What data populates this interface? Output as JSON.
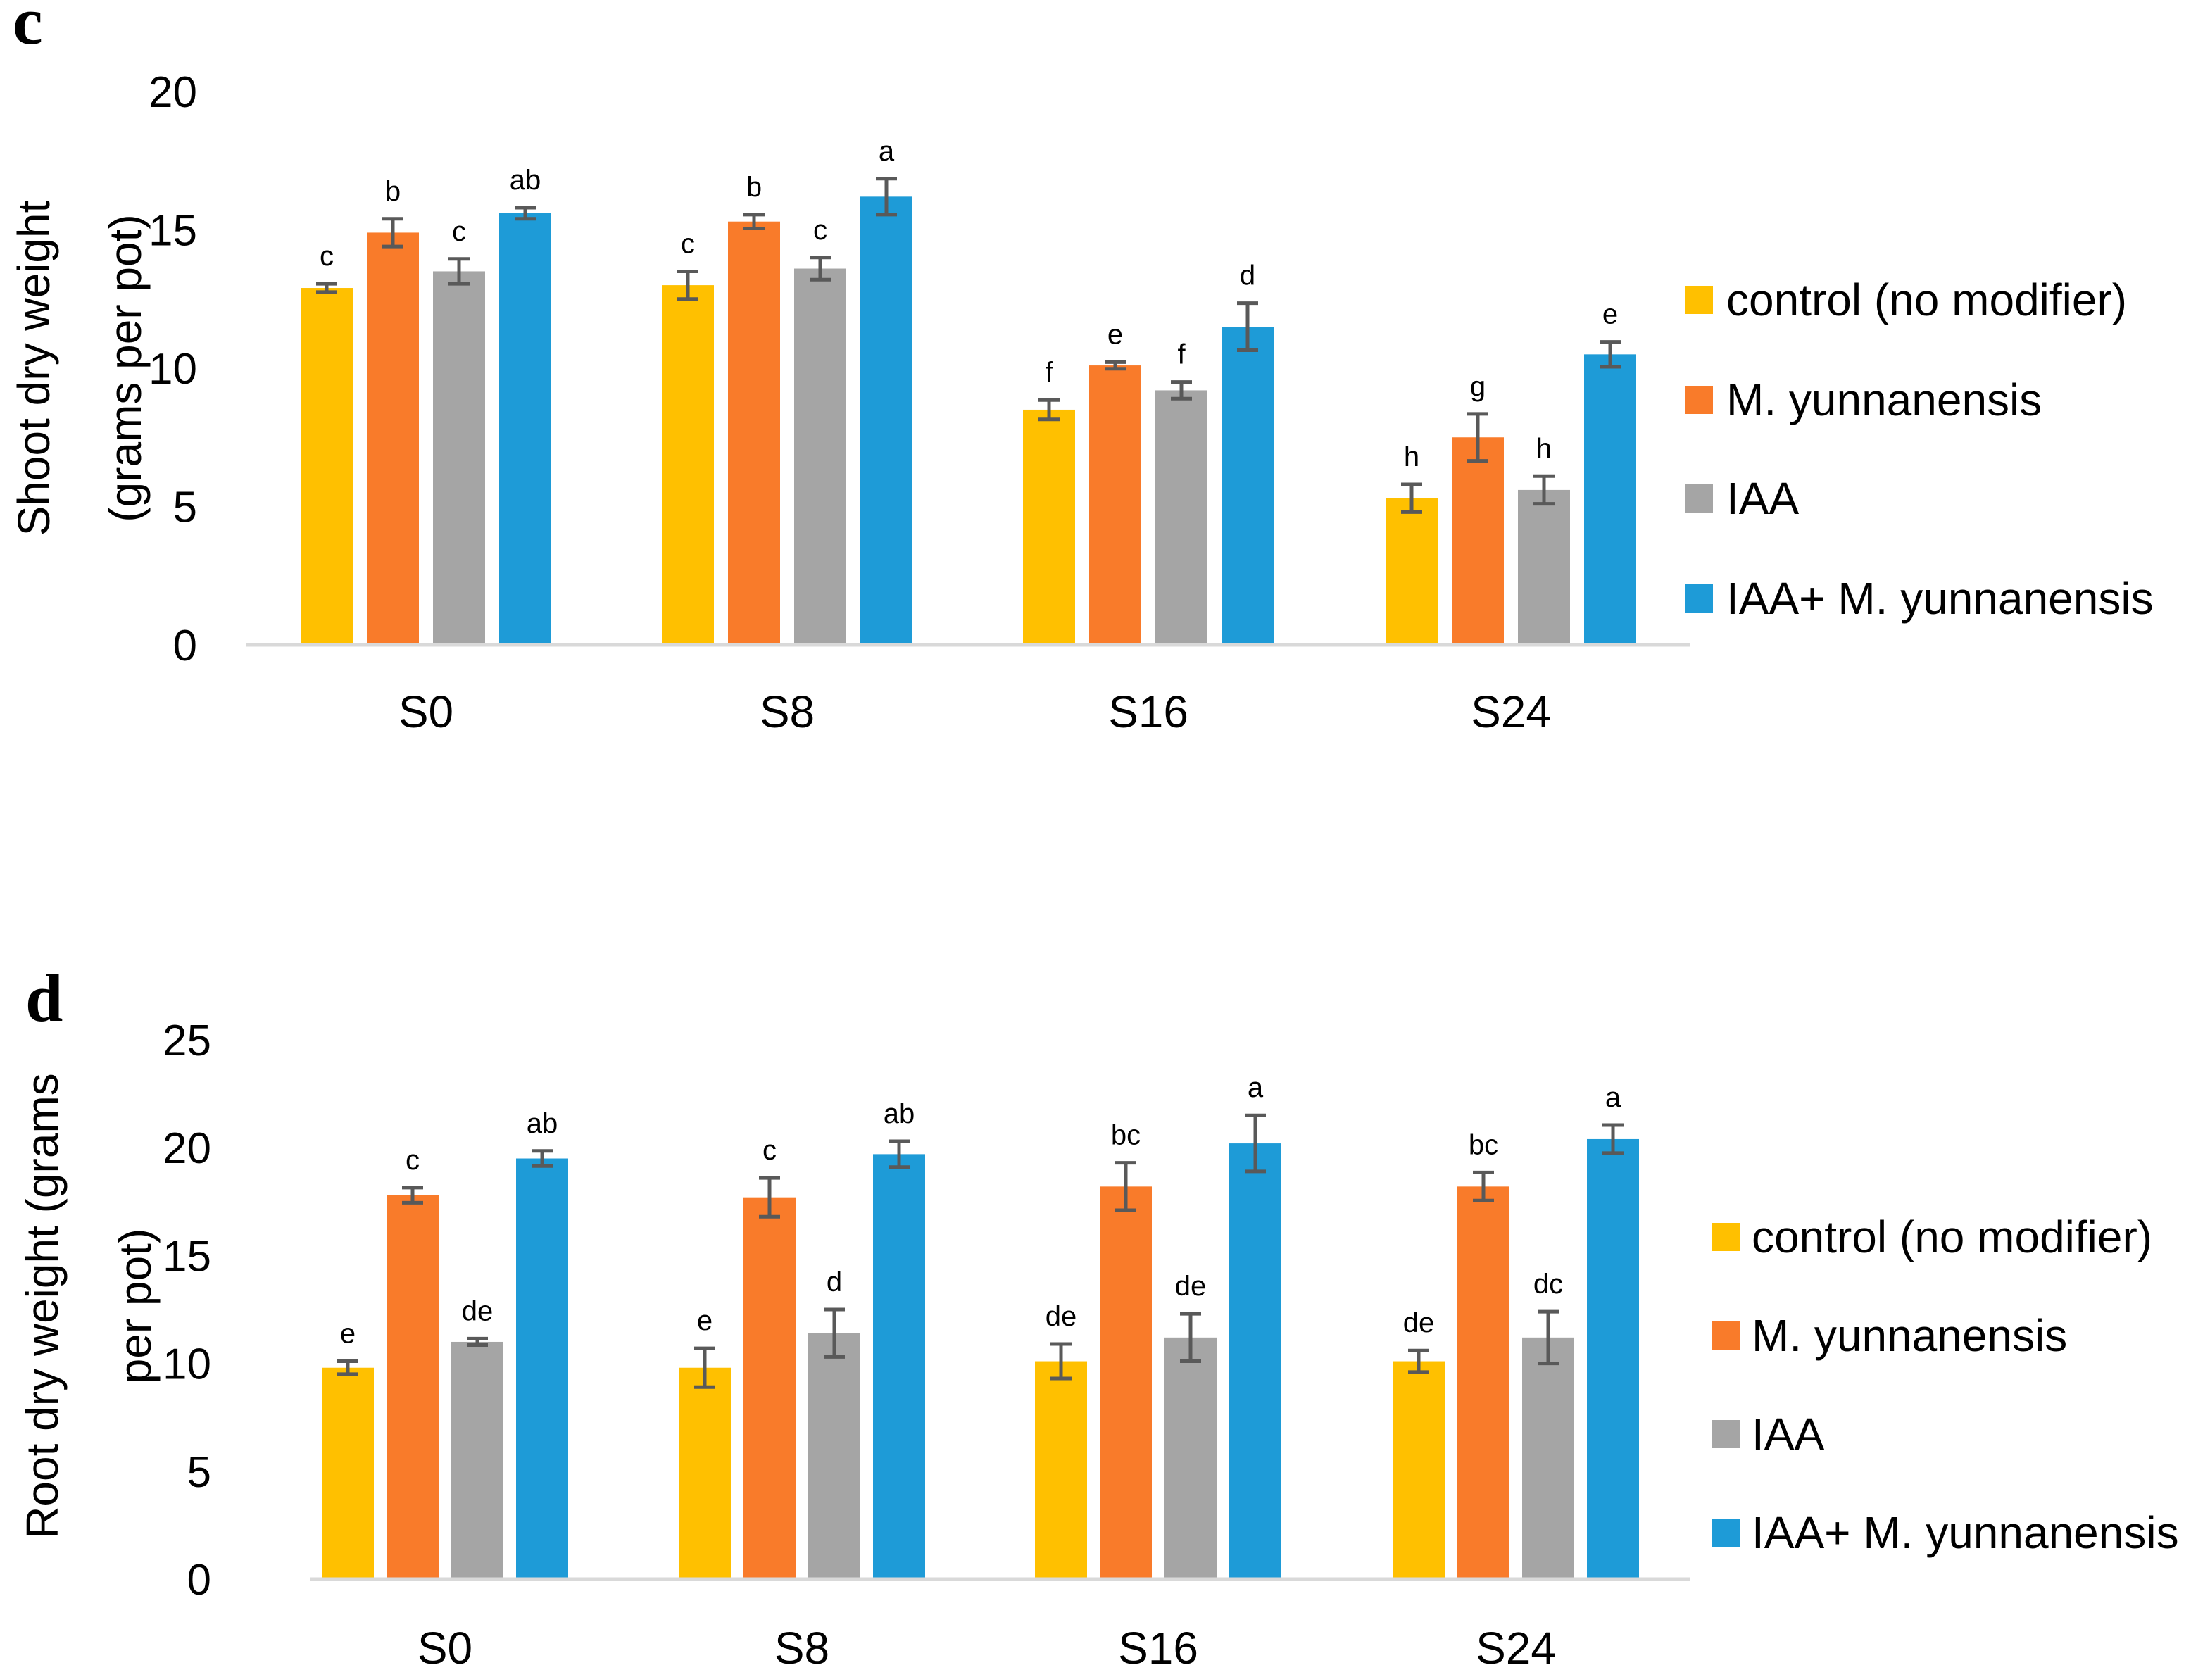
{
  "chart_data": [
    {
      "panel": "c",
      "type": "bar",
      "ylabel": [
        "Shoot dry weight",
        "(grams per pot)"
      ],
      "ylim": [
        0,
        20
      ],
      "yticks": [
        0,
        5,
        10,
        15,
        20
      ],
      "categories": [
        "S0",
        "S8",
        "S16",
        "S24"
      ],
      "series": [
        {
          "name": "control (no modifier)",
          "color": "#FFC000",
          "values": [
            12.9,
            13.0,
            8.5,
            5.3
          ],
          "errors": [
            0.15,
            0.5,
            0.35,
            0.5
          ],
          "letters": [
            "c",
            "c",
            "f",
            "h"
          ]
        },
        {
          "name": "M. yunnanensis",
          "color": "#F97B2A",
          "values": [
            14.9,
            15.3,
            10.1,
            7.5
          ],
          "errors": [
            0.5,
            0.25,
            0.12,
            0.85
          ],
          "letters": [
            "b",
            "b",
            "e",
            "g"
          ]
        },
        {
          "name": "IAA",
          "color": "#A5A5A5",
          "values": [
            13.5,
            13.6,
            9.2,
            5.6
          ],
          "errors": [
            0.45,
            0.4,
            0.3,
            0.5
          ],
          "letters": [
            "c",
            "c",
            "f",
            "h"
          ]
        },
        {
          "name": "IAA+ M. yunnanensis",
          "color": "#1E9BD7",
          "values": [
            15.6,
            16.2,
            11.5,
            10.5
          ],
          "errors": [
            0.2,
            0.65,
            0.85,
            0.45
          ],
          "letters": [
            "ab",
            "a",
            "d",
            "e"
          ]
        }
      ],
      "legend_position": "right"
    },
    {
      "panel": "d",
      "type": "bar",
      "ylabel": [
        "Root dry weight (grams",
        "per pot)"
      ],
      "ylim": [
        0,
        25
      ],
      "yticks": [
        0,
        5,
        10,
        15,
        20,
        25
      ],
      "categories": [
        "S0",
        "S8",
        "S16",
        "S24"
      ],
      "series": [
        {
          "name": "control (no modifier)",
          "color": "#FFC000",
          "values": [
            9.8,
            9.8,
            10.1,
            10.1
          ],
          "errors": [
            0.3,
            0.9,
            0.8,
            0.5
          ],
          "letters": [
            "e",
            "e",
            "de",
            "de"
          ]
        },
        {
          "name": "M. yunnanensis",
          "color": "#F97B2A",
          "values": [
            17.8,
            17.7,
            18.2,
            18.2
          ],
          "errors": [
            0.35,
            0.9,
            1.1,
            0.65
          ],
          "letters": [
            "c",
            "c",
            "bc",
            "bc"
          ]
        },
        {
          "name": "IAA",
          "color": "#A5A5A5",
          "values": [
            11.0,
            11.4,
            11.2,
            11.2
          ],
          "errors": [
            0.15,
            1.1,
            1.1,
            1.2
          ],
          "letters": [
            "de",
            "d",
            "de",
            "dc"
          ]
        },
        {
          "name": "IAA+ M. yunnanensis",
          "color": "#1E9BD7",
          "values": [
            19.5,
            19.7,
            20.2,
            20.4
          ],
          "errors": [
            0.35,
            0.6,
            1.3,
            0.65
          ],
          "letters": [
            "ab",
            "ab",
            "a",
            "a"
          ]
        }
      ],
      "legend_position": "right"
    }
  ]
}
